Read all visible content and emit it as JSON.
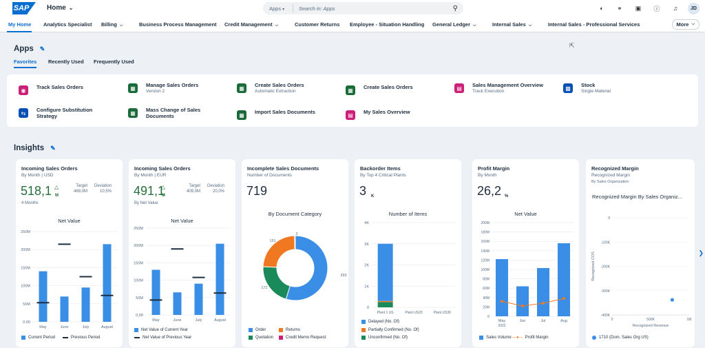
{
  "shell": {
    "logo": "SAP",
    "home": "Home",
    "search_scope": "Apps",
    "search_placeholder": "Search in: Apps",
    "avatar": "JD",
    "icons": [
      "joule-icon",
      "copilot-icon",
      "notes-icon",
      "help-icon",
      "bell-icon"
    ]
  },
  "nav_tabs": [
    {
      "label": "My Home"
    },
    {
      "label": "Analytics Specialist"
    },
    {
      "label": "Billing"
    },
    {
      "label": "Business Process Management"
    },
    {
      "label": "Credit Management"
    },
    {
      "label": "Customer Returns"
    },
    {
      "label": "Employee - Situation Handling"
    },
    {
      "label": "General Ledger"
    },
    {
      "label": "Internal Sales"
    },
    {
      "label": "Internal Sales - Professional Services"
    }
  ],
  "more_label": "More",
  "apps": {
    "title": "Apps",
    "tabs": [
      "Favorites",
      "Recently Used",
      "Frequently Used"
    ],
    "items": [
      {
        "title": "Track Sales Orders",
        "subtitle": "",
        "color": "#cc1f77"
      },
      {
        "title": "Manage Sales Orders",
        "subtitle": "Version 2",
        "color": "#1b6b3a"
      },
      {
        "title": "Create Sales Orders",
        "subtitle": "Automatic Extraction",
        "color": "#1b6b3a"
      },
      {
        "title": "Create Sales Orders",
        "subtitle": "",
        "color": "#1b6b3a"
      },
      {
        "title": "Sales Management Overview",
        "subtitle": "Track Execution",
        "color": "#cc1f77"
      },
      {
        "title": "Stock",
        "subtitle": "Single Material",
        "color": "#0a4fb3"
      },
      {
        "title": "Configure Substitution Strategy",
        "subtitle": "",
        "color": "#0a4fb3"
      },
      {
        "title": "Mass Change of Sales Documents",
        "subtitle": "",
        "color": "#1b6b3a"
      },
      {
        "title": "Import Sales Documents",
        "subtitle": "",
        "color": "#1b6b3a"
      },
      {
        "title": "My Sales Overview",
        "subtitle": "",
        "color": "#cc1f77"
      }
    ]
  },
  "insights": {
    "title": "Insights",
    "cards": [
      {
        "title": "Incoming Sales Orders",
        "subtitle": "By Month | USD",
        "kpi": "518,1",
        "unit": "M",
        "target_label": "Target",
        "target": "469,0M",
        "deviation_label": "Deviation",
        "deviation": "10,5%",
        "footer": "4 Months",
        "chart_title": "Net Value"
      },
      {
        "title": "Incoming Sales Orders",
        "subtitle": "By Month | EUR",
        "kpi": "491,1",
        "unit": "M",
        "target_label": "Target",
        "target": "409,0M",
        "deviation_label": "Deviation",
        "deviation": "20,0%",
        "footer": "By Net Value",
        "chart_title": "Net Value"
      },
      {
        "title": "Incomplete Sales Documents",
        "subtitle": "Number of Documents",
        "kpi": "719",
        "chart_title": "By Document Category"
      },
      {
        "title": "Backorder Items",
        "subtitle": "By Top 4 Critical Plants",
        "kpi": "3",
        "unit": "K",
        "chart_title": "Number of Items"
      },
      {
        "title": "Profit Margin",
        "subtitle": "By Month",
        "kpi": "26,2",
        "unit": "%",
        "chart_title": "Net Value"
      },
      {
        "title": "Recognized Margin",
        "subtitle": "Recognized Margin",
        "subtitle2": "By Sales Organization",
        "chart_title": "Recognized Margin By Sales Organiz..."
      }
    ]
  },
  "chart_data": [
    {
      "type": "bar",
      "title": "Net Value",
      "categories": [
        "May",
        "June",
        "July",
        "August"
      ],
      "series": [
        {
          "name": "Current Period",
          "values": [
            140,
            70,
            95,
            215
          ]
        },
        {
          "name": "Previous Period",
          "values": [
            53,
            215,
            125,
            73
          ]
        }
      ],
      "ylim": [
        0,
        250
      ],
      "yticks": [
        "0,00",
        "50M",
        "100M",
        "150M",
        "200M",
        "250M"
      ],
      "color": "#3a8ee6"
    },
    {
      "type": "bar",
      "title": "Net Value",
      "categories": [
        "May",
        "June",
        "July",
        "August"
      ],
      "series": [
        {
          "name": "Net Value of Current Year",
          "values": [
            130,
            65,
            90,
            205
          ]
        },
        {
          "name": "Net Value of Previous Year",
          "values": [
            43,
            190,
            108,
            63
          ]
        }
      ],
      "ylim": [
        0,
        250
      ],
      "yticks": [
        "0,00",
        "50M",
        "100M",
        "150M",
        "200M",
        "250M"
      ],
      "color": "#3a8ee6"
    },
    {
      "type": "pie",
      "title": "By Document Category",
      "labels": [
        "Order",
        "Quotation",
        "Returns",
        "Credit Memo Request"
      ],
      "values": [
        393,
        151,
        172,
        3
      ],
      "colors": [
        "#3a8ee6",
        "#1b8a5a",
        "#f07821",
        "#cc1f77"
      ]
    },
    {
      "type": "bar",
      "title": "Number of Items",
      "categories": [
        "Plant 1 US",
        "Plant US20",
        "Plant US30"
      ],
      "series": [
        {
          "name": "Delayed (No. Of)",
          "values": [
            2.7,
            0,
            0
          ]
        },
        {
          "name": "Partially Confirmed (No. Of)",
          "values": [
            0.05,
            0,
            0
          ]
        },
        {
          "name": "Unconfirmed (No. Of)",
          "values": [
            0.25,
            0,
            0
          ]
        }
      ],
      "ylim": [
        0,
        4
      ],
      "yticks": [
        "0",
        "1K",
        "2K",
        "3K",
        "4K"
      ],
      "colors": [
        "#3a8ee6",
        "#f07821",
        "#1b8a5a"
      ]
    },
    {
      "type": "bar",
      "title": "Net Value",
      "categories": [
        "May",
        "Jun",
        "Jul",
        "Aug"
      ],
      "category_sub": "2022",
      "series": [
        {
          "name": "Sales Volume",
          "values": [
            122,
            64,
            103,
            156
          ]
        },
        {
          "name": "Profit Margin",
          "values": [
            32,
            22,
            28,
            38
          ]
        }
      ],
      "ylim": [
        0,
        200
      ],
      "yticks": [
        "0",
        "20M",
        "40M",
        "60M",
        "80M",
        "100M",
        "120M",
        "140M",
        "160M",
        "180M",
        "200M"
      ],
      "colors": [
        "#3a8ee6",
        "#f07821"
      ]
    },
    {
      "type": "scatter",
      "title": "Recognized Margin By Sales Organiz...",
      "xlabel": "Recognized Revenue",
      "ylabel": "Recognized COS",
      "xticks": [
        "0",
        "500K",
        "1M"
      ],
      "yticks": [
        "0",
        "-100K",
        "-200K",
        "-300K",
        "-400K"
      ],
      "points": [
        {
          "x": 780,
          "y": -338
        }
      ],
      "xlim": [
        0,
        1000
      ],
      "ylim": [
        -400,
        0
      ],
      "series": [
        {
          "name": "1710 (Dom. Sales Org US)"
        }
      ],
      "color": "#3a8ee6"
    }
  ]
}
